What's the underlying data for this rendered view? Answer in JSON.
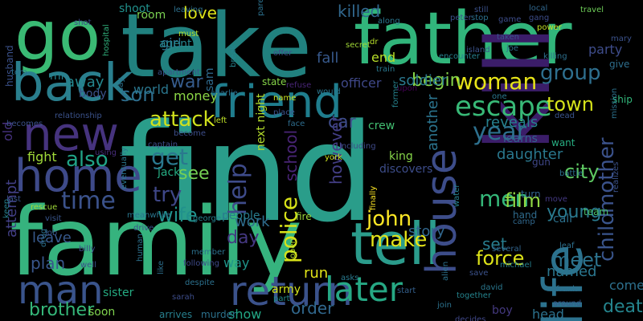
{
  "words": [
    {
      "text": "find",
      "color": "#2a9d8a"
    },
    {
      "text": "family",
      "color": "#36b37e"
    },
    {
      "text": "take",
      "color": "#21817f"
    },
    {
      "text": "go",
      "color": "#3aba74"
    },
    {
      "text": "father",
      "color": "#31b57b"
    },
    {
      "text": "kill",
      "color": "#3b1d69"
    },
    {
      "text": "tell",
      "color": "#2b9c8c"
    },
    {
      "text": "back",
      "color": "#2a7f8e"
    },
    {
      "text": "friend",
      "color": "#1f7d8d"
    },
    {
      "text": "new",
      "color": "#46337e"
    },
    {
      "text": "life",
      "color": "#2c728e"
    },
    {
      "text": "return",
      "color": "#3b528b"
    },
    {
      "text": "home",
      "color": "#3e4a89"
    },
    {
      "text": "house",
      "color": "#3d4d8a"
    },
    {
      "text": "man",
      "color": "#3a548c"
    },
    {
      "text": "later",
      "color": "#26a884"
    },
    {
      "text": "woman",
      "color": "#e7e419"
    },
    {
      "text": "escape",
      "color": "#38b977"
    },
    {
      "text": "killed",
      "color": "#31688e"
    },
    {
      "text": "love",
      "color": "#dde318"
    },
    {
      "text": "group",
      "color": "#2e6f8e"
    },
    {
      "text": "town",
      "color": "#d5e21a"
    },
    {
      "text": "time",
      "color": "#3b528b"
    },
    {
      "text": "also",
      "color": "#20a386"
    },
    {
      "text": "get",
      "color": "#2a788e"
    },
    {
      "text": "men",
      "color": "#35b779"
    },
    {
      "text": "year",
      "color": "#2d708e"
    },
    {
      "text": "help",
      "color": "#3e4b8a"
    },
    {
      "text": "police",
      "color": "#d8e219"
    },
    {
      "text": "child",
      "color": "#39558c"
    },
    {
      "text": "mother",
      "color": "#3b528b"
    },
    {
      "text": "death",
      "color": "#25858e"
    },
    {
      "text": "john",
      "color": "#fde725"
    },
    {
      "text": "make",
      "color": "#e5e419"
    },
    {
      "text": "attack",
      "color": "#d0e11c"
    },
    {
      "text": "war",
      "color": "#365c8d"
    },
    {
      "text": "wife",
      "color": "#21918c"
    },
    {
      "text": "try",
      "color": "#3f4788"
    },
    {
      "text": "see",
      "color": "#75d054"
    },
    {
      "text": "film",
      "color": "#90d743"
    },
    {
      "text": "city",
      "color": "#5ec962"
    },
    {
      "text": "meet",
      "color": "#2c738e"
    },
    {
      "text": "young",
      "color": "#297a8e"
    },
    {
      "text": "son",
      "color": "#2e6e8e"
    },
    {
      "text": "begin",
      "color": "#86d549"
    },
    {
      "text": "car",
      "color": "#3e4c8a"
    },
    {
      "text": "day",
      "color": "#453882"
    },
    {
      "text": "school",
      "color": "#482475"
    },
    {
      "text": "however",
      "color": "#433e85"
    },
    {
      "text": "brother",
      "color": "#35b779"
    },
    {
      "text": "order",
      "color": "#31688e"
    },
    {
      "text": "army",
      "color": "#d2e21b"
    },
    {
      "text": "run",
      "color": "#e2e418"
    },
    {
      "text": "fight",
      "color": "#a0da39"
    },
    {
      "text": "away",
      "color": "#24878e"
    },
    {
      "text": "plan",
      "color": "#39568c"
    },
    {
      "text": "leave",
      "color": "#37598c"
    },
    {
      "text": "attempt",
      "color": "#423f85"
    },
    {
      "text": "old",
      "color": "#46327e"
    },
    {
      "text": "next night",
      "color": "#b5de2b"
    },
    {
      "text": "story",
      "color": "#31678e"
    },
    {
      "text": "set",
      "color": "#287d8e"
    },
    {
      "text": "force",
      "color": "#dde318"
    },
    {
      "text": "named",
      "color": "#2a768e"
    },
    {
      "text": "reveals",
      "color": "#26818e"
    },
    {
      "text": "daughter",
      "color": "#2a788e"
    },
    {
      "text": "head",
      "color": "#2c728e"
    },
    {
      "text": "soldier",
      "color": "#2a778e"
    },
    {
      "text": "officer",
      "color": "#3f4889"
    },
    {
      "text": "end",
      "color": "#b8de29"
    },
    {
      "text": "fall",
      "color": "#37598c"
    },
    {
      "text": "world",
      "color": "#2a768e"
    },
    {
      "text": "money",
      "color": "#8bd646"
    },
    {
      "text": "girl",
      "color": "#2c718e"
    },
    {
      "text": "room",
      "color": "#7ad151"
    },
    {
      "text": "shoot",
      "color": "#21918c"
    },
    {
      "text": "work",
      "color": "#2f6c8e"
    },
    {
      "text": "way",
      "color": "#1f968b"
    },
    {
      "text": "show",
      "color": "#22a785"
    },
    {
      "text": "another",
      "color": "#2b748e"
    },
    {
      "text": "discovers",
      "color": "#3d4d8a"
    },
    {
      "text": "boy",
      "color": "#44397f"
    },
    {
      "text": "come",
      "color": "#2d708e"
    },
    {
      "text": "body",
      "color": "#3b528b"
    },
    {
      "text": "mr",
      "color": "#26828e"
    },
    {
      "text": "sister",
      "color": "#25ab82"
    },
    {
      "text": "jack",
      "color": "#25ac82"
    },
    {
      "text": "sam",
      "color": "#2f6b8e"
    },
    {
      "text": "agent",
      "color": "#25858e"
    },
    {
      "text": "team",
      "color": "#4ac16d"
    },
    {
      "text": "party",
      "color": "#3e4c8a"
    },
    {
      "text": "give",
      "color": "#2e6f8e"
    },
    {
      "text": "ship",
      "color": "#32b67a"
    },
    {
      "text": "want",
      "color": "#27ad81"
    },
    {
      "text": "learns",
      "color": "#33628d"
    },
    {
      "text": "call",
      "color": "#2c718e"
    },
    {
      "text": "king",
      "color": "#86d549"
    },
    {
      "text": "crew",
      "color": "#42be71"
    },
    {
      "text": "state",
      "color": "#86d549"
    },
    {
      "text": "people",
      "color": "#287c8e"
    },
    {
      "text": "fire",
      "color": "#9dd93b"
    },
    {
      "text": "gun",
      "color": "#3f4788"
    },
    {
      "text": "hand",
      "color": "#2f6c8e"
    },
    {
      "text": "turn",
      "color": "#32648e"
    },
    {
      "text": "soon",
      "color": "#7fd34e"
    },
    {
      "text": "arrives",
      "color": "#277f8e"
    },
    {
      "text": "murder",
      "color": "#2c728e"
    },
    {
      "text": "husband",
      "color": "#3b528b"
    },
    {
      "text": "becomes",
      "color": "#3b518b"
    },
    {
      "text": "relationship",
      "color": "#3b528b"
    },
    {
      "text": "eventually",
      "color": "#2a788e"
    },
    {
      "text": "captain",
      "color": "#3e4c8a"
    },
    {
      "text": "become",
      "color": "#3d4e8a"
    },
    {
      "text": "left",
      "color": "#bddf26"
    },
    {
      "text": "face",
      "color": "#2e6d8e"
    },
    {
      "text": "refuse",
      "color": "#482576"
    },
    {
      "text": "secret",
      "color": "#a2da37"
    },
    {
      "text": "dr",
      "color": "#b8de29"
    },
    {
      "text": "train",
      "color": "#2a788e"
    },
    {
      "text": "upon",
      "color": "#440154"
    },
    {
      "text": "island",
      "color": "#3b528b"
    },
    {
      "text": "one",
      "color": "#2a788e"
    },
    {
      "text": "taken",
      "color": "#3a548c"
    },
    {
      "text": "local",
      "color": "#31678e"
    },
    {
      "text": "gang",
      "color": "#3d4d8a"
    },
    {
      "text": "power",
      "color": "#c2df23"
    },
    {
      "text": "killing",
      "color": "#2d708e"
    },
    {
      "text": "travel",
      "color": "#6ece58"
    },
    {
      "text": "mission",
      "color": "#2c728e"
    },
    {
      "text": "realizes",
      "color": "#3b528b"
    },
    {
      "text": "dead",
      "color": "#3a548c"
    },
    {
      "text": "battle",
      "color": "#2d708e"
    },
    {
      "text": "move",
      "color": "#443983"
    },
    {
      "text": "several",
      "color": "#32658e"
    },
    {
      "text": "michael",
      "color": "#26818e"
    },
    {
      "text": "frank",
      "color": "#2d708e"
    },
    {
      "text": "around",
      "color": "#375a8c"
    },
    {
      "text": "david",
      "color": "#2a778e"
    },
    {
      "text": "join",
      "color": "#2c728e"
    },
    {
      "text": "decides",
      "color": "#3f4788"
    },
    {
      "text": "together",
      "color": "#25848e"
    },
    {
      "text": "alien",
      "color": "#2c718e"
    },
    {
      "text": "start",
      "color": "#34608d"
    },
    {
      "text": "asks",
      "color": "#29798e"
    },
    {
      "text": "part",
      "color": "#228b8d"
    },
    {
      "text": "open",
      "color": "#b0dd2f"
    },
    {
      "text": "york",
      "color": "#cae11f"
    },
    {
      "text": "finally",
      "color": "#fde725"
    },
    {
      "text": "including",
      "color": "#3e4a89"
    },
    {
      "text": "former",
      "color": "#26828e"
    },
    {
      "text": "encounter",
      "color": "#26818e"
    },
    {
      "text": "joe",
      "color": "#2d708e"
    },
    {
      "text": "still",
      "color": "#3b528b"
    },
    {
      "text": "peter",
      "color": "#3b528b"
    },
    {
      "text": "along",
      "color": "#2a768e"
    },
    {
      "text": "parent",
      "color": "#2c718e"
    },
    {
      "text": "break",
      "color": "#26828e"
    },
    {
      "text": "leaving",
      "color": "#2d708e"
    },
    {
      "text": "shot",
      "color": "#3e4a89"
    },
    {
      "text": "hospital",
      "color": "#30b07c"
    },
    {
      "text": "say",
      "color": "#2c718e"
    },
    {
      "text": "must",
      "color": "#b5de2b"
    },
    {
      "text": "offer",
      "color": "#3e4c8a"
    },
    {
      "text": "apartment",
      "color": "#3a548c"
    },
    {
      "text": "charlie",
      "color": "#2d708e"
    },
    {
      "text": "name",
      "color": "#cde11d"
    },
    {
      "text": "place",
      "color": "#3b528b"
    },
    {
      "text": "tom",
      "color": "#2c718e"
    },
    {
      "text": "last",
      "color": "#3a548c"
    },
    {
      "text": "keep",
      "color": "#26818e"
    },
    {
      "text": "rescue",
      "color": "#a0da39"
    },
    {
      "text": "visit",
      "color": "#39568c"
    },
    {
      "text": "job",
      "color": "#39568c"
    },
    {
      "text": "drug",
      "color": "#2c718e"
    },
    {
      "text": "well",
      "color": "#3b528b"
    },
    {
      "text": "billy",
      "color": "#3e4c8a"
    },
    {
      "text": "meanwhile",
      "color": "#2a768e"
    },
    {
      "text": "drive",
      "color": "#3b528b"
    },
    {
      "text": "human",
      "color": "#2c718e"
    },
    {
      "text": "like",
      "color": "#2d708e"
    },
    {
      "text": "sarah",
      "color": "#3d4d8a"
    },
    {
      "text": "despite",
      "color": "#2c718e"
    },
    {
      "text": "following",
      "color": "#3e4a89"
    },
    {
      "text": "member",
      "color": "#2c718e"
    },
    {
      "text": "george",
      "color": "#26818e"
    },
    {
      "text": "using",
      "color": "#472d7b"
    },
    {
      "text": "would",
      "color": "#2a768e"
    },
    {
      "text": "water",
      "color": "#26818e"
    },
    {
      "text": "save",
      "color": "#3b528b"
    },
    {
      "text": "leaf",
      "color": "#2d708e"
    },
    {
      "text": "mary",
      "color": "#3b528b"
    },
    {
      "text": "camp",
      "color": "#31688e"
    },
    {
      "text": "stop",
      "color": "#2c718e"
    },
    {
      "text": "game",
      "color": "#3d4d8a"
    },
    {
      "text": "ben",
      "color": "#3b528b"
    },
    {
      "text": "lead",
      "color": "#2c718e"
    }
  ]
}
